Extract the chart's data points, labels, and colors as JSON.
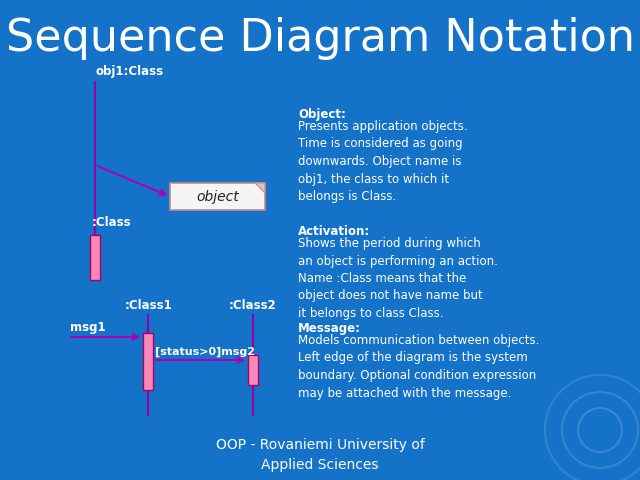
{
  "title": "Sequence Diagram Notation",
  "title_fontsize": 32,
  "title_color": "#FFFFFF",
  "bg_color": "#1472C8",
  "text_color": "#FFFFFF",
  "lifeline_color": "#9900AA",
  "activation_fill": "#FF88BB",
  "activation_edge": "#AA0066",
  "object_box_fill": "#F5F5F5",
  "object_box_edge": "#CC8888",
  "arrow_color": "#AA00BB",
  "footer": "OOP - Rovaniemi University of\nApplied Sciences",
  "footer_fontsize": 10,
  "obj1_label": "obj1:Class",
  "class_label": ":Class",
  "class1_label": ":Class1",
  "class2_label": ":Class2",
  "msg1_label": "msg1",
  "msg2_label": "[status>0]msg2",
  "object_box_label": "object",
  "object_text_bold": "Object:",
  "object_text_body": "Presents application objects.\nTime is considered as going\ndownwards. Object name is\nobj1, the class to which it\nbelongs is Class.",
  "activation_text_bold": "Activation:",
  "activation_text_body": "Shows the period during which\nan object is performing an action.\nName :Class means that the\nobject does not have name but\nit belongs to class Class.",
  "message_text_bold": "Message:",
  "message_text_body": "Models communication between objects.\nLeft edge of the diagram is the system\nboundary. Optional condition expression\nmay be attached with the message.",
  "small_fontsize": 8.5,
  "label_fontsize": 8.5
}
